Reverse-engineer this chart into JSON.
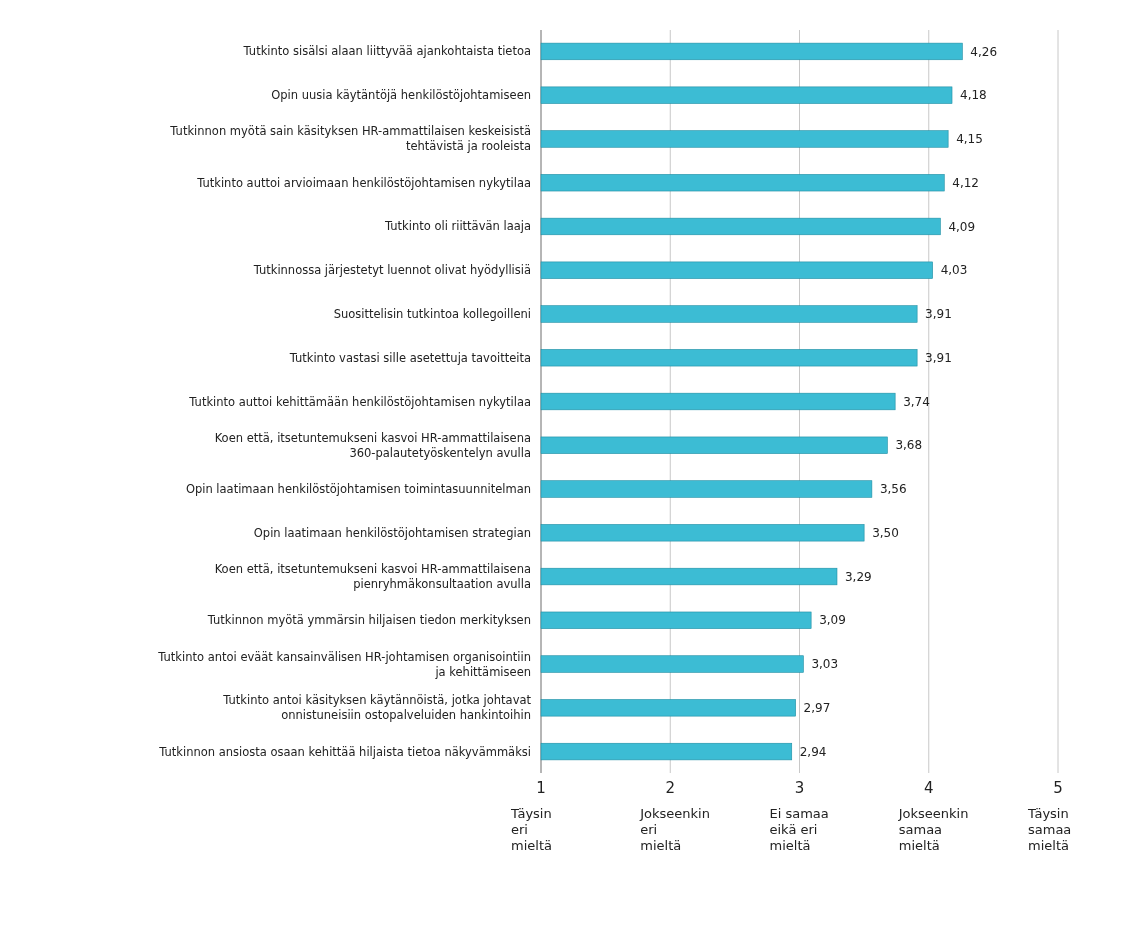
{
  "chart_data": {
    "type": "bar",
    "orientation": "horizontal",
    "categories": [
      "Tutkinto sisälsi alaan liittyvää ajankohtaista tietoa",
      "Opin uusia käytäntöjä henkilöstöjohtamiseen",
      "Tutkinnon myötä sain käsityksen HR-ammattilaisen keskeisistä tehtävistä ja rooleista",
      "Tutkinto auttoi arvioimaan henkilöstöjohtamisen nykytilaa",
      "Tutkinto oli riittävän laaja",
      "Tutkinnossa järjestetyt luennot olivat hyödyllisiä",
      "Suosittelisin tutkintoa kollegoilleni",
      "Tutkinto vastasi sille asetettuja tavoitteita",
      "Tutkinto auttoi kehittämään henkilöstöjohtamisen nykytilaa",
      "Koen että, itsetuntemukseni kasvoi HR-ammattilaisena 360-palautetyöskentelyn avulla",
      "Opin laatimaan henkilöstöjohtamisen toimintasuunnitelman",
      "Opin laatimaan henkilöstöjohtamisen strategian",
      "Koen että, itsetuntemukseni kasvoi HR-ammattilaisena pienryhmäkonsultaation avulla",
      "Tutkinnon myötä ymmärsin hiljaisen tiedon merkityksen",
      "Tutkinto antoi eväät kansainvälisen HR-johtamisen organisointiin ja kehittämiseen",
      "Tutkinto antoi käsityksen käytännöistä, jotka johtavat onnistuneisiin ostopalveluiden hankintoihin",
      "Tutkinnon ansiosta osaan kehittää hiljaista tietoa näkyvämmäksi"
    ],
    "values": [
      4.26,
      4.18,
      4.15,
      4.12,
      4.09,
      4.03,
      3.91,
      3.91,
      3.74,
      3.68,
      3.56,
      3.5,
      3.29,
      3.09,
      3.03,
      2.97,
      2.94
    ],
    "value_labels": [
      "4,26",
      "4,18",
      "4,15",
      "4,12",
      "4,09",
      "4,03",
      "3,91",
      "3,91",
      "3,74",
      "3,68",
      "3,56",
      "3,50",
      "3,29",
      "3,09",
      "3,03",
      "2,97",
      "2,94"
    ],
    "color": "#3cbcd4",
    "xlim": [
      1,
      5
    ],
    "xticks": [
      1,
      2,
      3,
      4,
      5
    ],
    "grid": "x",
    "annotations": [
      "Täysin eri mieltä",
      "Jokseenkin eri mieltä",
      "Ei samaa eikä eri mieltä",
      "Jokseenkin samaa mieltä",
      "Täysin samaa mieltä"
    ]
  }
}
